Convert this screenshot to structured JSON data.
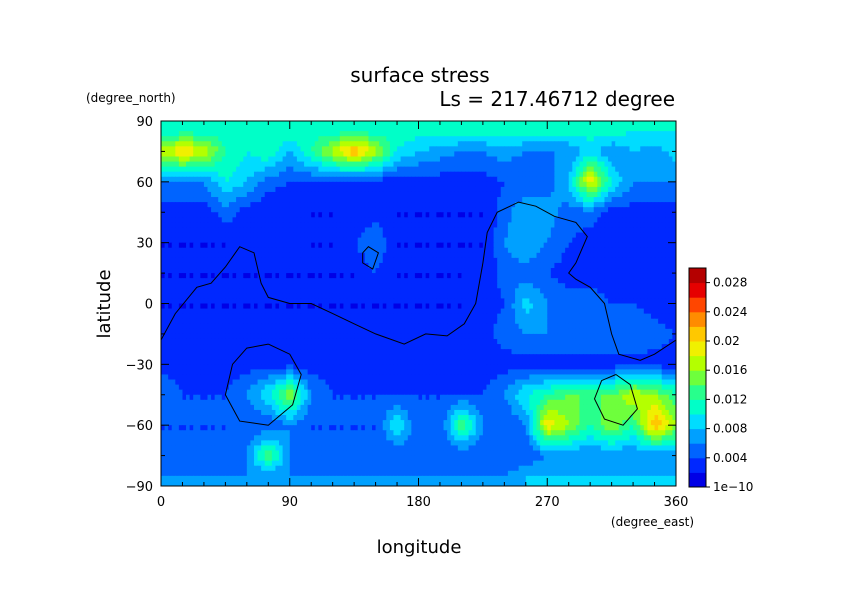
{
  "chart_data": {
    "type": "heatmap",
    "title": "surface stress",
    "subtitle": "Ls = 217.46712 degree",
    "xlabel": "longitude",
    "ylabel": "latitude",
    "x_units": "(degree_east)",
    "y_units": "(degree_north)",
    "xlim": [
      0,
      360
    ],
    "ylim": [
      -90,
      90
    ],
    "x_ticks": [
      "0",
      "90",
      "180",
      "270",
      "360"
    ],
    "y_ticks": [
      "90",
      "60",
      "30",
      "0",
      "−30",
      "−60",
      "−90"
    ],
    "x_tick_values": [
      0,
      90,
      180,
      270,
      360
    ],
    "y_tick_values": [
      90,
      60,
      30,
      0,
      -30,
      -60,
      -90
    ],
    "colorbar": {
      "labels": [
        "1e−10",
        "0.004",
        "0.008",
        "0.012",
        "0.016",
        "0.02",
        "0.024",
        "0.028"
      ],
      "label_values": [
        0,
        0.004,
        0.008,
        0.012,
        0.016,
        0.02,
        0.024,
        0.028
      ],
      "range": [
        0,
        0.03
      ],
      "colors": [
        "#0000e6",
        "#0028ff",
        "#0064ff",
        "#00a0ff",
        "#00dcff",
        "#00ffc8",
        "#28ff8c",
        "#6eff3c",
        "#b4ff00",
        "#f0f000",
        "#ffc800",
        "#ff8c00",
        "#ff4600",
        "#e60000",
        "#b40000"
      ]
    },
    "grid_step": 15,
    "grid_lon": [
      0,
      15,
      30,
      45,
      60,
      75,
      90,
      105,
      120,
      135,
      150,
      165,
      180,
      195,
      210,
      225,
      240,
      255,
      270,
      285,
      300,
      315,
      330,
      345,
      360
    ],
    "grid_lat": [
      85,
      75,
      60,
      45,
      30,
      15,
      0,
      -15,
      -30,
      -45,
      -60,
      -75,
      -85
    ],
    "values": [
      [
        0.01,
        0.011,
        0.011,
        0.011,
        0.011,
        0.011,
        0.011,
        0.011,
        0.011,
        0.011,
        0.011,
        0.011,
        0.011,
        0.011,
        0.011,
        0.011,
        0.011,
        0.011,
        0.011,
        0.011,
        0.011,
        0.011,
        0.01,
        0.01,
        0.01
      ],
      [
        0.017,
        0.02,
        0.018,
        0.012,
        0.01,
        0.012,
        0.008,
        0.012,
        0.017,
        0.022,
        0.017,
        0.01,
        0.008,
        0.007,
        0.006,
        0.006,
        0.007,
        0.006,
        0.006,
        0.006,
        0.009,
        0.006,
        0.008,
        0.007,
        0.009
      ],
      [
        0.006,
        0.006,
        0.006,
        0.01,
        0.008,
        0.005,
        0.004,
        0.004,
        0.004,
        0.003,
        0.003,
        0.003,
        0.003,
        0.003,
        0.003,
        0.003,
        0.004,
        0.004,
        0.005,
        0.008,
        0.02,
        0.01,
        0.006,
        0.006,
        0.006
      ],
      [
        0.003,
        0.003,
        0.003,
        0.005,
        0.003,
        0.002,
        0.002,
        0.002,
        0.002,
        0.002,
        0.003,
        0.002,
        0.002,
        0.002,
        0.002,
        0.002,
        0.005,
        0.008,
        0.007,
        0.005,
        0.005,
        0.003,
        0.003,
        0.003,
        0.003
      ],
      [
        0.002,
        0.002,
        0.002,
        0.002,
        0.004,
        0.004,
        0.003,
        0.002,
        0.002,
        0.004,
        0.006,
        0.002,
        0.002,
        0.002,
        0.002,
        0.002,
        0.006,
        0.008,
        0.006,
        0.004,
        0.003,
        0.004,
        0.003,
        0.003,
        0.002
      ],
      [
        0.002,
        0.002,
        0.002,
        0.002,
        0.002,
        0.002,
        0.002,
        0.002,
        0.002,
        0.002,
        0.004,
        0.002,
        0.002,
        0.002,
        0.002,
        0.002,
        0.005,
        0.005,
        0.004,
        0.003,
        0.003,
        0.003,
        0.003,
        0.002,
        0.002
      ],
      [
        0.002,
        0.002,
        0.002,
        0.002,
        0.002,
        0.002,
        0.002,
        0.002,
        0.002,
        0.002,
        0.002,
        0.002,
        0.002,
        0.002,
        0.002,
        0.003,
        0.004,
        0.009,
        0.006,
        0.005,
        0.005,
        0.004,
        0.004,
        0.003,
        0.002
      ],
      [
        0.002,
        0.002,
        0.002,
        0.002,
        0.002,
        0.002,
        0.002,
        0.002,
        0.002,
        0.002,
        0.002,
        0.002,
        0.002,
        0.002,
        0.002,
        0.003,
        0.005,
        0.006,
        0.006,
        0.006,
        0.006,
        0.006,
        0.006,
        0.005,
        0.004
      ],
      [
        0.003,
        0.003,
        0.003,
        0.003,
        0.003,
        0.003,
        0.003,
        0.003,
        0.003,
        0.003,
        0.003,
        0.003,
        0.003,
        0.003,
        0.003,
        0.003,
        0.003,
        0.003,
        0.003,
        0.003,
        0.003,
        0.003,
        0.003,
        0.003,
        0.003
      ],
      [
        0.006,
        0.004,
        0.004,
        0.004,
        0.006,
        0.01,
        0.016,
        0.006,
        0.004,
        0.004,
        0.004,
        0.004,
        0.004,
        0.004,
        0.004,
        0.004,
        0.006,
        0.01,
        0.012,
        0.014,
        0.014,
        0.014,
        0.018,
        0.016,
        0.012
      ],
      [
        0.004,
        0.004,
        0.004,
        0.004,
        0.004,
        0.004,
        0.006,
        0.004,
        0.004,
        0.004,
        0.004,
        0.01,
        0.004,
        0.004,
        0.014,
        0.006,
        0.004,
        0.006,
        0.02,
        0.016,
        0.012,
        0.016,
        0.012,
        0.022,
        0.016
      ],
      [
        0.004,
        0.004,
        0.004,
        0.004,
        0.006,
        0.014,
        0.006,
        0.004,
        0.004,
        0.004,
        0.004,
        0.004,
        0.006,
        0.004,
        0.004,
        0.004,
        0.004,
        0.004,
        0.006,
        0.006,
        0.006,
        0.006,
        0.006,
        0.006,
        0.006
      ],
      [
        0.006,
        0.006,
        0.006,
        0.006,
        0.006,
        0.006,
        0.006,
        0.006,
        0.006,
        0.006,
        0.006,
        0.006,
        0.006,
        0.006,
        0.006,
        0.006,
        0.006,
        0.008,
        0.008,
        0.008,
        0.008,
        0.008,
        0.008,
        0.008,
        0.008
      ]
    ],
    "contours": [
      [
        [
          0,
          -18
        ],
        [
          10,
          -5
        ],
        [
          25,
          8
        ],
        [
          35,
          10
        ],
        [
          45,
          18
        ],
        [
          55,
          28
        ],
        [
          65,
          25
        ],
        [
          70,
          10
        ],
        [
          75,
          3
        ],
        [
          90,
          0
        ],
        [
          105,
          0
        ],
        [
          120,
          -5
        ],
        [
          135,
          -10
        ],
        [
          150,
          -15
        ],
        [
          170,
          -20
        ],
        [
          185,
          -15
        ],
        [
          200,
          -16
        ],
        [
          212,
          -10
        ],
        [
          220,
          0
        ],
        [
          225,
          20
        ],
        [
          228,
          35
        ],
        [
          235,
          45
        ],
        [
          250,
          50
        ],
        [
          262,
          48
        ],
        [
          275,
          43
        ],
        [
          290,
          40
        ],
        [
          298,
          33
        ],
        [
          290,
          20
        ],
        [
          285,
          15
        ],
        [
          290,
          12
        ],
        [
          300,
          8
        ],
        [
          310,
          0
        ],
        [
          315,
          -15
        ],
        [
          320,
          -25
        ],
        [
          335,
          -28
        ],
        [
          345,
          -25
        ],
        [
          360,
          -18
        ]
      ],
      [
        [
          141,
          25
        ],
        [
          145,
          28
        ],
        [
          152,
          25
        ],
        [
          148,
          17
        ],
        [
          141,
          20
        ],
        [
          141,
          25
        ]
      ],
      [
        [
          75,
          -20
        ],
        [
          90,
          -25
        ],
        [
          98,
          -35
        ],
        [
          92,
          -50
        ],
        [
          75,
          -60
        ],
        [
          55,
          -58
        ],
        [
          45,
          -45
        ],
        [
          50,
          -30
        ],
        [
          60,
          -22
        ],
        [
          75,
          -20
        ]
      ],
      [
        [
          318,
          -35
        ],
        [
          328,
          -40
        ],
        [
          333,
          -52
        ],
        [
          323,
          -60
        ],
        [
          310,
          -57
        ],
        [
          303,
          -47
        ],
        [
          308,
          -38
        ],
        [
          318,
          -35
        ]
      ]
    ]
  }
}
